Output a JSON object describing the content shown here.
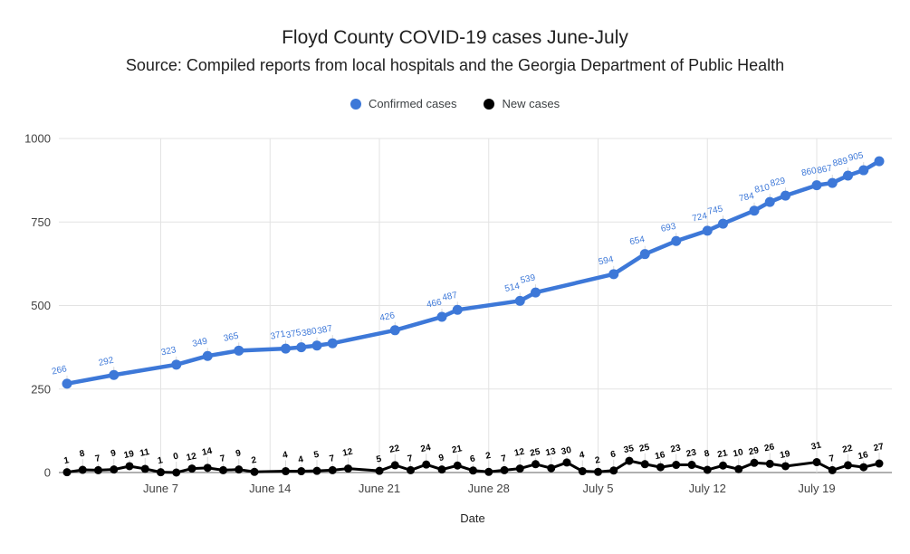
{
  "page": {
    "title": "Floyd County COVID-19 cases June-July",
    "subtitle": "Source: Compiled reports from local hospitals and the Georgia Department of Public Health"
  },
  "legend": {
    "items": [
      {
        "label": "Confirmed cases",
        "color": "#3d78d8"
      },
      {
        "label": "New cases",
        "color": "#000000"
      }
    ]
  },
  "chart_data": {
    "type": "line",
    "title": "Floyd County COVID-19 cases June-July",
    "subtitle": "Source: Compiled reports from local hospitals and the Georgia Department of Public Health",
    "xlabel": "Date",
    "ylabel": "",
    "ylim": [
      0,
      1000
    ],
    "y_ticks": [
      0,
      250,
      500,
      750,
      1000
    ],
    "x_tick_labels": [
      "June 7",
      "June 14",
      "June 21",
      "June 28",
      "July 5",
      "July 12",
      "July 19"
    ],
    "grid": true,
    "legend_position": "top",
    "x": [
      "June 1",
      "June 2",
      "June 3",
      "June 4",
      "June 5",
      "June 6",
      "June 7",
      "June 8",
      "June 9",
      "June 10",
      "June 11",
      "June 12",
      "June 13",
      "June 14",
      "June 15",
      "June 16",
      "June 17",
      "June 18",
      "June 19",
      "June 20",
      "June 21",
      "June 22",
      "June 23",
      "June 24",
      "June 25",
      "June 26",
      "June 27",
      "June 28",
      "June 29",
      "June 30",
      "July 1",
      "July 2",
      "July 3",
      "July 4",
      "July 5",
      "July 6",
      "July 7",
      "July 8",
      "July 9",
      "July 10",
      "July 11",
      "July 12",
      "July 13",
      "July 14",
      "July 15",
      "July 16",
      "July 17",
      "July 18",
      "July 19",
      "July 20",
      "July 21",
      "July 22",
      "July 23"
    ],
    "series": [
      {
        "name": "Confirmed cases",
        "color": "#3d78d8",
        "values": [
          266,
          null,
          null,
          292,
          null,
          null,
          null,
          323,
          null,
          349,
          null,
          365,
          null,
          null,
          371,
          375,
          380,
          387,
          null,
          null,
          null,
          426,
          null,
          null,
          466,
          487,
          null,
          null,
          null,
          514,
          539,
          null,
          null,
          null,
          null,
          594,
          null,
          654,
          null,
          693,
          null,
          724,
          745,
          null,
          784,
          810,
          829,
          null,
          860,
          867,
          889,
          905,
          932
        ],
        "label_hidden_dates": [
          "July 23"
        ]
      },
      {
        "name": "New cases",
        "color": "#000000",
        "values": [
          1,
          8,
          7,
          9,
          19,
          11,
          1,
          0,
          12,
          14,
          7,
          9,
          2,
          null,
          4,
          4,
          5,
          7,
          12,
          null,
          5,
          22,
          7,
          24,
          9,
          21,
          6,
          2,
          7,
          12,
          25,
          13,
          30,
          4,
          2,
          6,
          35,
          25,
          16,
          23,
          23,
          8,
          21,
          10,
          29,
          26,
          19,
          null,
          31,
          7,
          22,
          16,
          27
        ],
        "label_hidden_dates": []
      }
    ]
  }
}
